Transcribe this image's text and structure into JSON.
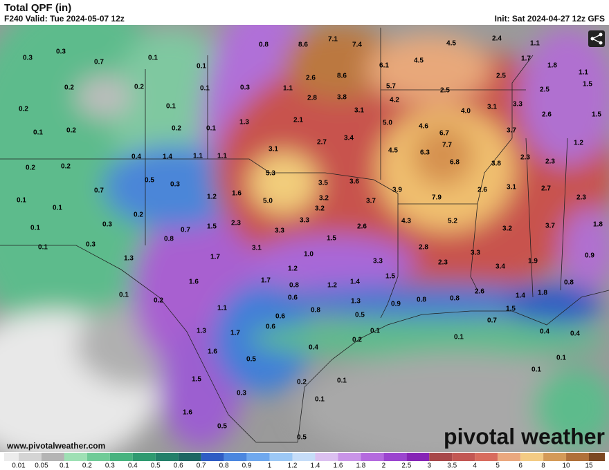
{
  "header": {
    "title": "Total QPF (in)",
    "valid": "F240 Valid: Tue 2024-05-07 12z",
    "init": "Init: Sat 2024-04-27 12z GFS"
  },
  "map": {
    "labels": [
      "0.3",
      "0.3",
      "0.7",
      "0.1",
      "0.1",
      "0.8",
      "8.6",
      "7.1",
      "7.4",
      "4.5",
      "2.4",
      "1.1",
      "1.7",
      "1.8",
      "1.1",
      "6.1",
      "4.5",
      "0.2",
      "0.2",
      "0.1",
      "0.3",
      "1.1",
      "2.6",
      "8.6",
      "5.7",
      "2.5",
      "2.5",
      "1.5",
      "2.5",
      "0.2",
      "0.1",
      "2.8",
      "3.8",
      "4.2",
      "3.1",
      "4.0",
      "3.1",
      "3.3",
      "2.6",
      "1.5",
      "0.1",
      "0.2",
      "0.2",
      "0.1",
      "1.3",
      "2.1",
      "5.0",
      "4.6",
      "6.7",
      "3.7",
      "3.4",
      "2.7",
      "7.7",
      "1.2",
      "0.4",
      "1.4",
      "1.1",
      "1.1",
      "3.1",
      "4.5",
      "6.3",
      "6.8",
      "3.8",
      "2.3",
      "2.3",
      "0.2",
      "0.2",
      "0.5",
      "0.3",
      "5.3",
      "3.5",
      "3.6",
      "3.9",
      "2.6",
      "3.1",
      "2.7",
      "0.7",
      "1.6",
      "0.1",
      "5.0",
      "3.2",
      "3.7",
      "7.9",
      "2.3",
      "1.2",
      "0.1",
      "0.2",
      "3.2",
      "0.3",
      "0.7",
      "1.5",
      "2.3",
      "3.3",
      "2.6",
      "4.3",
      "5.2",
      "3.2",
      "3.7",
      "1.8",
      "0.1",
      "3.3",
      "0.8",
      "1.5",
      "0.3",
      "0.1",
      "3.1",
      "2.8",
      "1.0",
      "3.3",
      "1.3",
      "1.7",
      "3.3",
      "2.3",
      "1.9",
      "0.9",
      "3.4",
      "1.2",
      "1.6",
      "1.7",
      "1.5",
      "0.8",
      "1.2",
      "1.4",
      "0.1",
      "0.8",
      "2.6",
      "1.4",
      "1.8",
      "0.2",
      "0.6",
      "0.9",
      "0.8",
      "0.8",
      "1.3",
      "1.1",
      "0.8",
      "1.5",
      "0.6",
      "0.5",
      "0.7",
      "0.6",
      "1.3",
      "1.7",
      "0.1",
      "0.4",
      "0.4",
      "0.1",
      "0.2",
      "0.4",
      "1.6",
      "0.5",
      "0.1",
      "0.1",
      "1.5",
      "0.2",
      "0.1",
      "0.3",
      "0.1",
      "1.6",
      "0.5",
      "0.5"
    ]
  },
  "colorbar": {
    "labels": [
      "0.01",
      "0.05",
      "0.1",
      "0.2",
      "0.3",
      "0.4",
      "0.5",
      "0.6",
      "0.7",
      "0.8",
      "0.9",
      "1",
      "1.2",
      "1.4",
      "1.6",
      "1.8",
      "2",
      "2.5",
      "3",
      "3.5",
      "4",
      "5",
      "6",
      "8",
      "10",
      "15"
    ],
    "colors": [
      "#ececec",
      "#d4d4d4",
      "#b4b4b4",
      "#9ee0b4",
      "#6fcb97",
      "#47b37f",
      "#2f9a70",
      "#23806a",
      "#1d6763",
      "#2f5cc4",
      "#4b86df",
      "#6fa8ee",
      "#9cc8f5",
      "#c6ddf8",
      "#dcc0f0",
      "#c994e8",
      "#b46ade",
      "#9b44cf",
      "#8624b6",
      "#a8484a",
      "#c25753",
      "#d86c5e",
      "#eaa87f",
      "#f3cb84",
      "#d49a58",
      "#b0703a",
      "#7c4722"
    ]
  },
  "footer": {
    "url": "www.pivotalweather.com",
    "brand": "pivotal weather"
  }
}
